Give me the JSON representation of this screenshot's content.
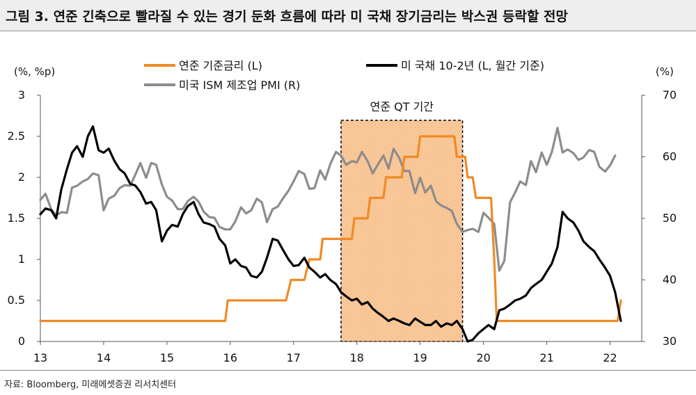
{
  "header": {
    "title": "그림 3. 연준 긴축으로 빨라질 수 있는 경기 둔화 흐름에 따라 미 국채 장기금리는 박스권 등락할 전망"
  },
  "footer": {
    "source": "자료: Bloomberg, 미래에셋증권 리서치센터"
  },
  "chart_data": {
    "type": "line",
    "title": "그림 3. 연준 긴축으로 빨라질 수 있는 경기 둔화 흐름에 따라 미 국채 장기금리는 박스권 등락할 전망",
    "y_left_label": "(%, %p)",
    "y_right_label": "(%)",
    "ylim_left": [
      0,
      3
    ],
    "ylim_right": [
      30,
      70
    ],
    "y_left_ticks": [
      "0",
      "0.5",
      "1",
      "1.5",
      "2",
      "2.5",
      "3"
    ],
    "y_right_ticks": [
      "30",
      "40",
      "50",
      "60",
      "70"
    ],
    "x_ticks": [
      "13",
      "14",
      "15",
      "16",
      "17",
      "18",
      "19",
      "20",
      "21",
      "22"
    ],
    "xlim": [
      2013.0,
      2022.5
    ],
    "legend_placement": "top",
    "grid": false,
    "annotation": {
      "label": "연준 QT 기간",
      "start": 2017.75,
      "end": 2019.67
    },
    "colors": {
      "fed": "#F08A24",
      "treasury": "#000000",
      "pmi": "#8C8C8C",
      "qt_fill": "#F7C28F"
    },
    "series": [
      {
        "name": "연준 기준금리 (L)",
        "axis": "left",
        "x": [
          2013.0,
          2015.92,
          2015.96,
          2016.88,
          2016.96,
          2017.17,
          2017.25,
          2017.42,
          2017.46,
          2017.92,
          2017.96,
          2018.17,
          2018.21,
          2018.42,
          2018.46,
          2018.71,
          2018.75,
          2018.96,
          2019.0,
          2019.54,
          2019.58,
          2019.71,
          2019.75,
          2019.83,
          2019.88,
          2020.12,
          2020.17,
          2020.21,
          2022.12,
          2022.17
        ],
        "values": [
          0.25,
          0.25,
          0.5,
          0.5,
          0.75,
          0.75,
          1.0,
          1.0,
          1.25,
          1.25,
          1.5,
          1.5,
          1.75,
          1.75,
          2.0,
          2.0,
          2.25,
          2.25,
          2.5,
          2.5,
          2.25,
          2.25,
          2.0,
          2.0,
          1.75,
          1.75,
          1.0,
          0.25,
          0.25,
          0.5
        ]
      },
      {
        "name": "미 국채 10-2년 (L, 월간 기준)",
        "axis": "left",
        "x": [
          2013.0,
          2013.08,
          2013.17,
          2013.25,
          2013.33,
          2013.42,
          2013.5,
          2013.58,
          2013.67,
          2013.75,
          2013.83,
          2013.92,
          2014.0,
          2014.08,
          2014.17,
          2014.25,
          2014.33,
          2014.42,
          2014.5,
          2014.58,
          2014.67,
          2014.75,
          2014.83,
          2014.92,
          2015.0,
          2015.08,
          2015.17,
          2015.25,
          2015.33,
          2015.42,
          2015.5,
          2015.58,
          2015.67,
          2015.75,
          2015.83,
          2015.92,
          2016.0,
          2016.08,
          2016.17,
          2016.25,
          2016.33,
          2016.42,
          2016.5,
          2016.58,
          2016.67,
          2016.75,
          2016.83,
          2016.92,
          2017.0,
          2017.08,
          2017.17,
          2017.25,
          2017.33,
          2017.42,
          2017.5,
          2017.58,
          2017.67,
          2017.75,
          2017.83,
          2017.92,
          2018.0,
          2018.08,
          2018.17,
          2018.25,
          2018.33,
          2018.42,
          2018.5,
          2018.58,
          2018.67,
          2018.75,
          2018.83,
          2018.92,
          2019.0,
          2019.08,
          2019.17,
          2019.25,
          2019.33,
          2019.42,
          2019.5,
          2019.58,
          2019.67,
          2019.75,
          2019.83,
          2019.92,
          2020.0,
          2020.08,
          2020.17,
          2020.25,
          2020.33,
          2020.42,
          2020.5,
          2020.58,
          2020.67,
          2020.75,
          2020.83,
          2020.92,
          2021.0,
          2021.08,
          2021.17,
          2021.25,
          2021.33,
          2021.42,
          2021.5,
          2021.58,
          2021.67,
          2021.75,
          2021.83,
          2021.92,
          2022.0,
          2022.08,
          2022.17
        ],
        "values": [
          1.55,
          1.62,
          1.6,
          1.5,
          1.85,
          2.1,
          2.3,
          2.38,
          2.25,
          2.5,
          2.62,
          2.33,
          2.3,
          2.35,
          2.2,
          2.1,
          2.05,
          1.92,
          1.9,
          1.82,
          1.68,
          1.7,
          1.6,
          1.22,
          1.35,
          1.42,
          1.4,
          1.55,
          1.65,
          1.7,
          1.55,
          1.45,
          1.43,
          1.4,
          1.25,
          1.17,
          0.95,
          1.0,
          0.92,
          0.9,
          0.8,
          0.78,
          0.85,
          1.02,
          1.25,
          1.23,
          1.12,
          1.0,
          0.92,
          0.93,
          1.02,
          0.9,
          0.85,
          0.78,
          0.82,
          0.75,
          0.7,
          0.6,
          0.55,
          0.5,
          0.52,
          0.45,
          0.48,
          0.4,
          0.35,
          0.3,
          0.25,
          0.28,
          0.25,
          0.22,
          0.2,
          0.28,
          0.24,
          0.2,
          0.2,
          0.25,
          0.18,
          0.22,
          0.2,
          0.25,
          0.15,
          0.0,
          0.02,
          0.1,
          0.15,
          0.2,
          0.15,
          0.38,
          0.4,
          0.45,
          0.5,
          0.52,
          0.56,
          0.65,
          0.7,
          0.75,
          0.85,
          0.95,
          1.15,
          1.58,
          1.5,
          1.45,
          1.35,
          1.22,
          1.15,
          1.1,
          1.0,
          0.9,
          0.8,
          0.6,
          0.25
        ]
      },
      {
        "name": "미국 ISM 제조업 PMI (R)",
        "axis": "right",
        "x": [
          2013.0,
          2013.08,
          2013.17,
          2013.25,
          2013.33,
          2013.42,
          2013.5,
          2013.58,
          2013.67,
          2013.75,
          2013.83,
          2013.92,
          2014.0,
          2014.08,
          2014.17,
          2014.25,
          2014.33,
          2014.42,
          2014.5,
          2014.58,
          2014.67,
          2014.75,
          2014.83,
          2014.92,
          2015.0,
          2015.08,
          2015.17,
          2015.25,
          2015.33,
          2015.42,
          2015.5,
          2015.58,
          2015.67,
          2015.75,
          2015.83,
          2015.92,
          2016.0,
          2016.08,
          2016.17,
          2016.25,
          2016.33,
          2016.42,
          2016.5,
          2016.58,
          2016.67,
          2016.75,
          2016.83,
          2016.92,
          2017.0,
          2017.08,
          2017.17,
          2017.25,
          2017.33,
          2017.42,
          2017.5,
          2017.58,
          2017.67,
          2017.75,
          2017.83,
          2017.92,
          2018.0,
          2018.08,
          2018.17,
          2018.25,
          2018.33,
          2018.42,
          2018.5,
          2018.58,
          2018.67,
          2018.75,
          2018.83,
          2018.92,
          2019.0,
          2019.08,
          2019.17,
          2019.25,
          2019.33,
          2019.42,
          2019.5,
          2019.58,
          2019.67,
          2019.75,
          2019.83,
          2019.92,
          2020.0,
          2020.08,
          2020.17,
          2020.25,
          2020.33,
          2020.42,
          2020.5,
          2020.58,
          2020.67,
          2020.75,
          2020.83,
          2020.92,
          2021.0,
          2021.08,
          2021.17,
          2021.25,
          2021.33,
          2021.42,
          2021.5,
          2021.58,
          2021.67,
          2021.75,
          2021.83,
          2021.92,
          2022.0,
          2022.08
        ],
        "values": [
          53.0,
          54.0,
          51.5,
          50.5,
          51.0,
          50.9,
          55.0,
          55.3,
          56.0,
          56.4,
          57.3,
          57.0,
          51.3,
          53.2,
          53.7,
          54.9,
          55.4,
          55.3,
          57.1,
          59.0,
          56.6,
          59.0,
          58.7,
          55.5,
          53.5,
          52.9,
          51.5,
          51.5,
          52.8,
          53.5,
          52.7,
          51.1,
          50.2,
          50.1,
          48.6,
          48.2,
          48.2,
          49.5,
          51.8,
          50.8,
          51.3,
          53.2,
          52.6,
          49.4,
          51.5,
          51.9,
          53.2,
          54.5,
          56.0,
          57.7,
          57.2,
          54.8,
          54.9,
          57.8,
          56.3,
          58.8,
          60.8,
          60.2,
          58.7,
          59.3,
          59.1,
          60.8,
          59.3,
          57.3,
          58.7,
          60.2,
          58.1,
          61.3,
          59.8,
          57.7,
          57.7,
          54.1,
          56.6,
          54.2,
          55.3,
          52.8,
          52.1,
          51.7,
          51.2,
          49.1,
          47.8,
          48.1,
          48.3,
          47.8,
          50.9,
          50.1,
          49.1,
          41.5,
          43.1,
          52.6,
          54.2,
          56.0,
          55.4,
          59.3,
          57.5,
          60.7,
          58.7,
          60.8,
          64.7,
          60.7,
          61.2,
          60.6,
          59.5,
          59.9,
          61.1,
          60.8,
          58.4,
          57.6,
          58.6,
          60.2
        ]
      }
    ]
  }
}
